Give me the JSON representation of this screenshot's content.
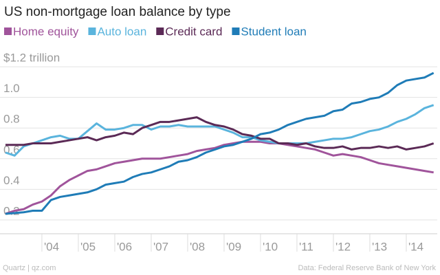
{
  "chart_data": {
    "type": "line",
    "title": "US non-mortgage loan balance by type",
    "source": "Data: Federal Reserve Bank of New York",
    "credit": "Quartz | qz.com",
    "x": [
      2003,
      2003.25,
      2003.5,
      2003.75,
      2004,
      2004.25,
      2004.5,
      2004.75,
      2005,
      2005.25,
      2005.5,
      2005.75,
      2006,
      2006.25,
      2006.5,
      2006.75,
      2007,
      2007.25,
      2007.5,
      2007.75,
      2008,
      2008.25,
      2008.5,
      2008.75,
      2009,
      2009.25,
      2009.5,
      2009.75,
      2010,
      2010.25,
      2010.5,
      2010.75,
      2011,
      2011.25,
      2011.5,
      2011.75,
      2012,
      2012.25,
      2012.5,
      2012.75,
      2013,
      2013.25,
      2013.5,
      2013.75,
      2014,
      2014.25,
      2014.5,
      2014.75
    ],
    "series": [
      {
        "name": "Home equity",
        "color": "#a0549b",
        "values": [
          0.24,
          0.26,
          0.27,
          0.3,
          0.32,
          0.36,
          0.42,
          0.46,
          0.49,
          0.52,
          0.53,
          0.55,
          0.57,
          0.58,
          0.59,
          0.6,
          0.6,
          0.6,
          0.61,
          0.62,
          0.63,
          0.65,
          0.66,
          0.67,
          0.69,
          0.7,
          0.71,
          0.71,
          0.71,
          0.7,
          0.7,
          0.69,
          0.68,
          0.67,
          0.66,
          0.64,
          0.62,
          0.63,
          0.62,
          0.61,
          0.59,
          0.57,
          0.56,
          0.55,
          0.54,
          0.53,
          0.52,
          0.51
        ]
      },
      {
        "name": "Auto loan",
        "color": "#5ab4dd",
        "values": [
          0.64,
          0.62,
          0.68,
          0.7,
          0.72,
          0.74,
          0.75,
          0.73,
          0.73,
          0.78,
          0.83,
          0.79,
          0.79,
          0.8,
          0.82,
          0.82,
          0.79,
          0.81,
          0.81,
          0.82,
          0.81,
          0.81,
          0.81,
          0.81,
          0.79,
          0.77,
          0.74,
          0.74,
          0.72,
          0.71,
          0.7,
          0.7,
          0.7,
          0.7,
          0.71,
          0.72,
          0.73,
          0.73,
          0.74,
          0.76,
          0.78,
          0.79,
          0.81,
          0.84,
          0.86,
          0.89,
          0.93,
          0.95
        ]
      },
      {
        "name": "Credit card",
        "color": "#5b2a56",
        "values": [
          0.69,
          0.69,
          0.69,
          0.7,
          0.7,
          0.7,
          0.71,
          0.72,
          0.73,
          0.74,
          0.72,
          0.74,
          0.75,
          0.77,
          0.76,
          0.8,
          0.82,
          0.84,
          0.84,
          0.85,
          0.86,
          0.87,
          0.84,
          0.82,
          0.81,
          0.79,
          0.76,
          0.75,
          0.73,
          0.73,
          0.7,
          0.7,
          0.69,
          0.7,
          0.68,
          0.67,
          0.67,
          0.68,
          0.66,
          0.67,
          0.67,
          0.68,
          0.67,
          0.68,
          0.66,
          0.67,
          0.68,
          0.7
        ]
      },
      {
        "name": "Student loan",
        "color": "#1f7cb7",
        "values": [
          0.24,
          0.245,
          0.25,
          0.26,
          0.26,
          0.33,
          0.35,
          0.36,
          0.37,
          0.38,
          0.4,
          0.43,
          0.44,
          0.45,
          0.48,
          0.5,
          0.51,
          0.53,
          0.55,
          0.58,
          0.59,
          0.61,
          0.64,
          0.66,
          0.68,
          0.69,
          0.71,
          0.73,
          0.76,
          0.77,
          0.79,
          0.82,
          0.84,
          0.86,
          0.87,
          0.88,
          0.91,
          0.92,
          0.96,
          0.97,
          0.99,
          1.0,
          1.03,
          1.08,
          1.11,
          1.12,
          1.13,
          1.16
        ]
      }
    ],
    "xlim": [
      2002.85,
      2014.85
    ],
    "xticks": [
      {
        "value": 2004,
        "label": "'04"
      },
      {
        "value": 2005,
        "label": "'05"
      },
      {
        "value": 2006,
        "label": "'06"
      },
      {
        "value": 2007,
        "label": "'07"
      },
      {
        "value": 2008,
        "label": "'08"
      },
      {
        "value": 2009,
        "label": "'09"
      },
      {
        "value": 2010,
        "label": "'10"
      },
      {
        "value": 2011,
        "label": "'11"
      },
      {
        "value": 2012,
        "label": "'12"
      },
      {
        "value": 2013,
        "label": "'13"
      },
      {
        "value": 2014,
        "label": "'14"
      }
    ],
    "ylim": [
      0.15,
      1.25
    ],
    "yticks": [
      0.2,
      0.4,
      0.6,
      0.8,
      {
        "value": 1.0,
        "label": "1.0"
      },
      {
        "value": 1.2,
        "label": "$1.2 trillion"
      }
    ],
    "grid": true
  }
}
